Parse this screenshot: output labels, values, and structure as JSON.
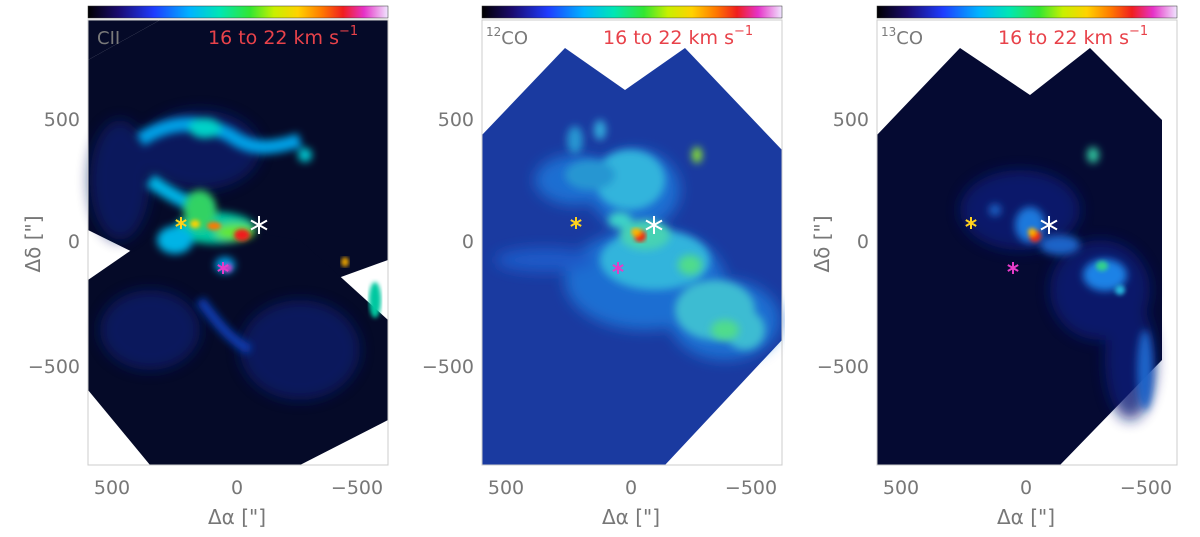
{
  "figure": {
    "panels": [
      {
        "id": "cii",
        "title": "CII",
        "title_sup": ""
      },
      {
        "id": "co12",
        "title": "CO",
        "title_sup": "12"
      },
      {
        "id": "co13",
        "title": "CO",
        "title_sup": "13"
      }
    ],
    "velocity_label": "16 to 22 km s",
    "velocity_sup": "−1",
    "xlabel": "Δα [\"]",
    "ylabel": "Δδ [\"]",
    "x_ticks": [
      "500",
      "0",
      "−500"
    ],
    "y_ticks": [
      "500",
      "0",
      "−500"
    ],
    "colors": {
      "background": "#050a28",
      "velocity_text": "#e8424a",
      "star_white": "#ffffff",
      "star_yellow": "#ffd21e",
      "star_magenta": "#e63cc8"
    },
    "colormap": "rainbow (black-blue-cyan-green-yellow-red-magenta-white)"
  },
  "chart_data": [
    {
      "type": "heatmap",
      "name": "CII",
      "xlim": [
        600,
        -600
      ],
      "ylim": [
        -900,
        900
      ],
      "xlabel": "Δα [\"]",
      "ylabel": "Δδ [\"]",
      "stars": [
        {
          "color": "white",
          "x": -90,
          "y": 70
        },
        {
          "color": "yellow",
          "x": 220,
          "y": 80
        },
        {
          "color": "magenta",
          "x": 50,
          "y": -110
        }
      ]
    },
    {
      "type": "heatmap",
      "name": "12CO",
      "xlim": [
        600,
        -600
      ],
      "ylim": [
        -900,
        900
      ],
      "xlabel": "Δα [\"]",
      "ylabel": "",
      "stars": [
        {
          "color": "white",
          "x": -90,
          "y": 70
        },
        {
          "color": "yellow",
          "x": 220,
          "y": 80
        },
        {
          "color": "magenta",
          "x": 50,
          "y": -110
        }
      ]
    },
    {
      "type": "heatmap",
      "name": "13CO",
      "xlim": [
        600,
        -600
      ],
      "ylim": [
        -900,
        900
      ],
      "xlabel": "Δα [\"]",
      "ylabel": "Δδ [\"]",
      "stars": [
        {
          "color": "white",
          "x": -90,
          "y": 70
        },
        {
          "color": "yellow",
          "x": 220,
          "y": 80
        },
        {
          "color": "magenta",
          "x": 50,
          "y": -110
        }
      ]
    }
  ]
}
